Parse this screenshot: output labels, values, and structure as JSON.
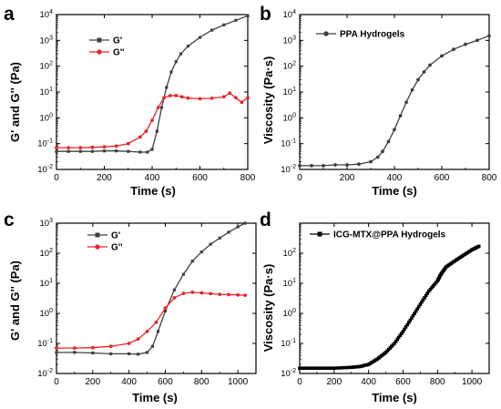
{
  "colors": {
    "black_series": "#404040",
    "red_series": "#e8262c",
    "ink": "#000000",
    "dense_black": "#000000"
  },
  "chart_data": [
    {
      "panel": "a",
      "type": "line",
      "xlabel": "Time (s)",
      "ylabel": "G' and G'' (Pa)",
      "xlim": [
        0,
        800
      ],
      "xticks": [
        "0",
        "200",
        "400",
        "600",
        "800"
      ],
      "ylim": [
        0.01,
        10000
      ],
      "yscale": "log",
      "yticks": [
        "10-2",
        "10-1",
        "100",
        "101",
        "102",
        "103",
        "104"
      ],
      "legend_position": "top-left",
      "series": [
        {
          "name": "G'",
          "color": "#404040",
          "marker": "square",
          "x": [
            0,
            50,
            100,
            150,
            200,
            250,
            300,
            350,
            380,
            400,
            420,
            440,
            460,
            480,
            500,
            520,
            550,
            600,
            650,
            700,
            750,
            800
          ],
          "y": [
            0.05,
            0.05,
            0.05,
            0.05,
            0.052,
            0.052,
            0.05,
            0.047,
            0.047,
            0.06,
            0.3,
            2.5,
            15,
            60,
            150,
            300,
            600,
            1300,
            2500,
            4000,
            6000,
            9000
          ]
        },
        {
          "name": "G''",
          "color": "#e8262c",
          "marker": "circle",
          "x": [
            0,
            50,
            100,
            150,
            200,
            250,
            300,
            350,
            375,
            400,
            425,
            450,
            475,
            500,
            525,
            550,
            600,
            650,
            700,
            725,
            750,
            775,
            800
          ],
          "y": [
            0.07,
            0.07,
            0.07,
            0.072,
            0.075,
            0.08,
            0.1,
            0.18,
            0.3,
            0.8,
            2.5,
            6,
            7.2,
            7.3,
            6.5,
            5.8,
            5.5,
            5.7,
            6.5,
            9,
            6,
            4,
            6
          ]
        }
      ]
    },
    {
      "panel": "b",
      "type": "line",
      "xlabel": "Time (s)",
      "ylabel": "Viscosity (Pa·s)",
      "xlim": [
        0,
        800
      ],
      "xticks": [
        "0",
        "200",
        "400",
        "600",
        "800"
      ],
      "ylim": [
        0.01,
        10000
      ],
      "yscale": "log",
      "yticks": [
        "10-2",
        "10-1",
        "100",
        "101",
        "102",
        "103",
        "104"
      ],
      "legend_position": "top-left",
      "series": [
        {
          "name": "PPA Hydrogels",
          "color": "#404040",
          "marker": "circle",
          "x": [
            0,
            50,
            100,
            150,
            200,
            250,
            300,
            330,
            350,
            375,
            400,
            425,
            450,
            475,
            500,
            525,
            550,
            600,
            650,
            700,
            750,
            800
          ],
          "y": [
            0.014,
            0.014,
            0.014,
            0.015,
            0.015,
            0.016,
            0.02,
            0.03,
            0.05,
            0.12,
            0.35,
            1.2,
            4,
            12,
            30,
            60,
            110,
            250,
            450,
            700,
            1000,
            1500
          ]
        }
      ]
    },
    {
      "panel": "c",
      "type": "line",
      "xlabel": "Time (s)",
      "ylabel": "G' and G'' (Pa)",
      "xlim": [
        0,
        1100
      ],
      "xticks": [
        "0",
        "200",
        "400",
        "600",
        "800",
        "1000"
      ],
      "ylim": [
        0.01,
        1000
      ],
      "yscale": "log",
      "yticks": [
        "10-2",
        "10-1",
        "100",
        "101",
        "102",
        "103"
      ],
      "legend_position": "top-left",
      "series": [
        {
          "name": "G'",
          "color": "#404040",
          "marker": "square",
          "x": [
            0,
            100,
            200,
            300,
            400,
            450,
            500,
            530,
            560,
            600,
            650,
            700,
            750,
            800,
            850,
            900,
            950,
            1000,
            1040
          ],
          "y": [
            0.05,
            0.05,
            0.048,
            0.045,
            0.045,
            0.044,
            0.05,
            0.08,
            0.25,
            1.2,
            6,
            20,
            55,
            110,
            200,
            320,
            500,
            750,
            1000
          ]
        },
        {
          "name": "G''",
          "color": "#e8262c",
          "marker": "circle",
          "x": [
            0,
            100,
            200,
            300,
            400,
            450,
            500,
            550,
            600,
            650,
            700,
            750,
            800,
            850,
            900,
            950,
            1000,
            1040
          ],
          "y": [
            0.07,
            0.07,
            0.072,
            0.08,
            0.1,
            0.14,
            0.25,
            0.5,
            1.5,
            3.3,
            4.6,
            5,
            4.8,
            4.5,
            4.3,
            4.2,
            4.1,
            4
          ]
        }
      ]
    },
    {
      "panel": "d",
      "type": "line",
      "xlabel": "Time (s)",
      "ylabel": "Viscosity (Pa·s)",
      "xlim": [
        0,
        1100
      ],
      "xticks": [
        "0",
        "200",
        "400",
        "600",
        "800",
        "1000"
      ],
      "ylim": [
        0.01,
        1000
      ],
      "yscale": "log",
      "yticks": [
        "10-2",
        "10-1",
        "100",
        "101",
        "102"
      ],
      "legend_position": "top-left",
      "series": [
        {
          "name": "ICG-MTX@PPA Hydrogels",
          "color": "#000000",
          "marker": "square",
          "x": [
            0,
            100,
            200,
            300,
            350,
            400,
            450,
            500,
            550,
            600,
            650,
            700,
            750,
            800,
            820,
            850,
            900,
            950,
            1000,
            1040
          ],
          "y": [
            0.015,
            0.015,
            0.015,
            0.016,
            0.017,
            0.02,
            0.03,
            0.05,
            0.1,
            0.25,
            0.7,
            2,
            5.5,
            12,
            20,
            35,
            55,
            85,
            130,
            170
          ]
        }
      ]
    }
  ]
}
